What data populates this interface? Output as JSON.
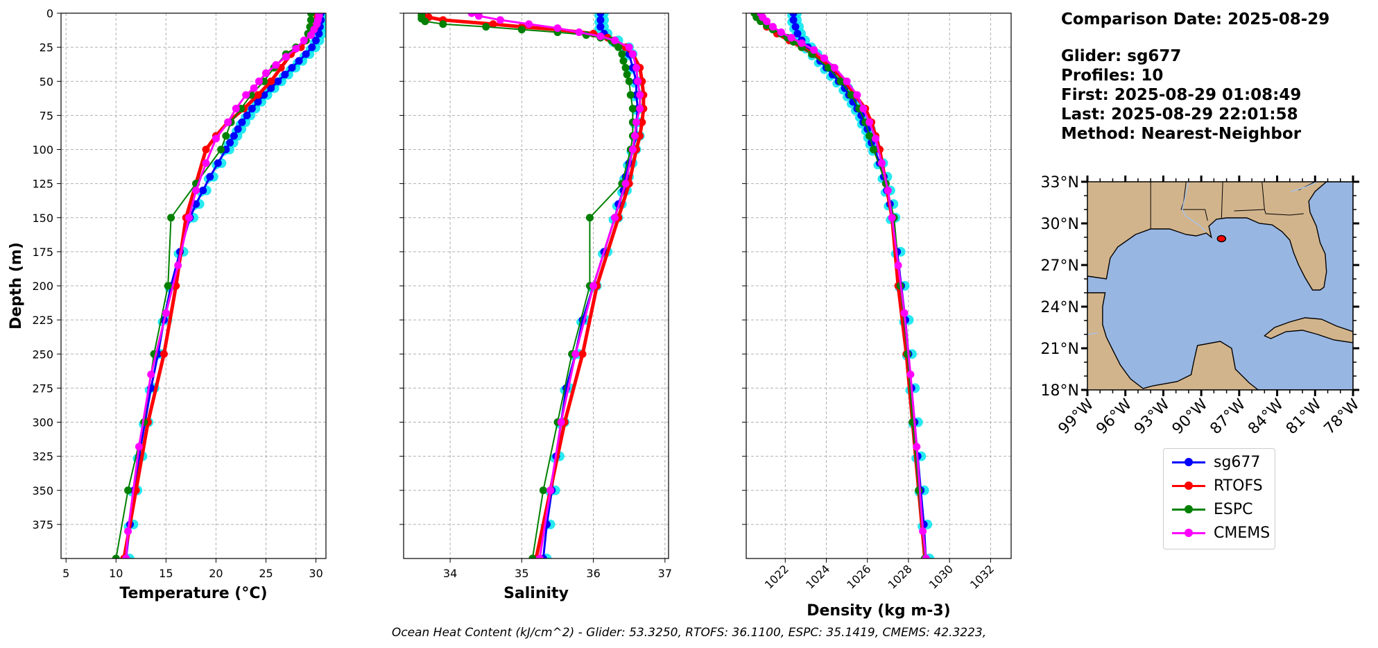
{
  "info": {
    "comparison_date": "Comparison Date: 2025-08-29",
    "glider": "Glider: sg677",
    "profiles": "Profiles: 10",
    "first": "First: 2025-08-29 01:08:49",
    "last": "Last: 2025-08-29 22:01:58",
    "method": "Method: Nearest-Neighbor"
  },
  "footer": "Ocean Heat Content (kJ/cm^2) - Glider: 53.3250,  RTOFS: 36.1100,  ESPC: 35.1419,  CMEMS: 42.3223,",
  "colors": {
    "sg677": "#0000ff",
    "sg677_spread": "#00e5ee",
    "RTOFS": "#ff0000",
    "ESPC": "#008000",
    "CMEMS": "#ff00ff",
    "land": "#d2b48c",
    "ocean": "#98b6e2"
  },
  "legend": [
    {
      "name": "sg677",
      "color": "#0000ff"
    },
    {
      "name": "RTOFS",
      "color": "#ff0000"
    },
    {
      "name": "ESPC",
      "color": "#008000"
    },
    {
      "name": "CMEMS",
      "color": "#ff00ff"
    }
  ],
  "chart_data": [
    {
      "type": "line",
      "xlabel": "Temperature (°C)",
      "ylabel": "Depth (m)",
      "xlim": [
        4.5,
        31
      ],
      "ylim": [
        400,
        0
      ],
      "xticks": [
        5,
        10,
        15,
        20,
        25,
        30
      ],
      "yticks": [
        0,
        25,
        50,
        75,
        100,
        125,
        150,
        175,
        200,
        225,
        250,
        275,
        300,
        325,
        350,
        375
      ],
      "grid": true,
      "series": [
        {
          "name": "sg677",
          "depth": [
            0,
            5,
            10,
            15,
            20,
            25,
            30,
            35,
            40,
            45,
            50,
            55,
            60,
            65,
            70,
            75,
            80,
            85,
            90,
            95,
            100,
            110,
            120,
            130,
            140,
            150,
            175,
            200,
            225,
            250,
            275,
            300,
            325,
            350,
            375,
            400
          ],
          "values": [
            30.5,
            30.5,
            30.4,
            30.3,
            30.0,
            29.6,
            29.0,
            28.3,
            27.6,
            26.9,
            26.2,
            25.5,
            24.8,
            24.2,
            23.6,
            23.1,
            22.6,
            22.2,
            21.8,
            21.4,
            21.0,
            20.2,
            19.4,
            18.7,
            18.0,
            17.4,
            16.4,
            15.5,
            14.8,
            14.2,
            13.5,
            12.9,
            12.3,
            11.8,
            11.4,
            11.0
          ]
        },
        {
          "name": "RTOFS",
          "depth": [
            0,
            5,
            10,
            15,
            20,
            25,
            30,
            40,
            50,
            60,
            70,
            80,
            90,
            100,
            125,
            150,
            200,
            250,
            300,
            350,
            400
          ],
          "values": [
            30.0,
            30.0,
            29.9,
            29.5,
            29.0,
            28.5,
            27.5,
            26.5,
            25.5,
            24.2,
            22.8,
            21.2,
            20.0,
            19.0,
            18.0,
            17.0,
            16.0,
            14.8,
            13.2,
            12.0,
            10.8
          ]
        },
        {
          "name": "ESPC",
          "depth": [
            0,
            5,
            10,
            15,
            20,
            25,
            30,
            40,
            50,
            60,
            70,
            80,
            90,
            100,
            125,
            150,
            200,
            250,
            300,
            350,
            400
          ],
          "values": [
            29.5,
            29.5,
            29.4,
            29.2,
            29.0,
            28.0,
            27.0,
            25.8,
            24.8,
            23.5,
            22.5,
            21.5,
            21.0,
            20.5,
            18.0,
            15.5,
            15.2,
            13.8,
            12.8,
            11.2,
            10.0
          ]
        },
        {
          "name": "CMEMS",
          "depth": [
            0,
            2,
            5,
            8,
            12,
            16,
            20,
            26,
            32,
            38,
            44,
            50,
            55,
            60,
            70,
            80,
            92,
            110,
            130,
            150,
            185,
            220,
            265,
            318,
            380,
            400
          ],
          "values": [
            30.3,
            30.3,
            30.2,
            30.1,
            29.8,
            29.5,
            28.8,
            28.0,
            27.0,
            26.0,
            25.0,
            24.3,
            23.8,
            23.0,
            22.0,
            21.2,
            20.0,
            19.0,
            18.0,
            17.3,
            16.2,
            15.0,
            13.5,
            12.3,
            11.2,
            11.0
          ]
        }
      ]
    },
    {
      "type": "line",
      "xlabel": "Salinity",
      "xlim": [
        33.35,
        37.05
      ],
      "ylim": [
        400,
        0
      ],
      "xticks": [
        34,
        35,
        36,
        37
      ],
      "yticks": [
        0,
        25,
        50,
        75,
        100,
        125,
        150,
        175,
        200,
        225,
        250,
        275,
        300,
        325,
        350,
        375
      ],
      "grid": true,
      "series": [
        {
          "name": "sg677",
          "depth": [
            0,
            5,
            10,
            15,
            20,
            25,
            30,
            40,
            50,
            60,
            70,
            80,
            90,
            100,
            110,
            120,
            130,
            140,
            150,
            175,
            200,
            225,
            250,
            275,
            300,
            325,
            350,
            375,
            400
          ],
          "values": [
            36.1,
            36.1,
            36.1,
            36.15,
            36.3,
            36.45,
            36.5,
            36.55,
            36.6,
            36.6,
            36.62,
            36.6,
            36.6,
            36.55,
            36.5,
            36.45,
            36.42,
            36.35,
            36.3,
            36.15,
            36.0,
            35.85,
            35.75,
            35.62,
            35.55,
            35.48,
            35.42,
            35.35,
            35.3
          ]
        },
        {
          "name": "RTOFS",
          "depth": [
            0,
            3,
            5,
            8,
            10,
            12,
            15,
            18,
            20,
            25,
            30,
            40,
            50,
            60,
            70,
            80,
            90,
            100,
            125,
            150,
            200,
            250,
            300,
            350,
            400
          ],
          "values": [
            33.6,
            33.7,
            33.9,
            34.6,
            35.0,
            35.5,
            36.0,
            36.2,
            36.3,
            36.45,
            36.55,
            36.65,
            36.68,
            36.7,
            36.7,
            36.68,
            36.65,
            36.6,
            36.5,
            36.35,
            36.05,
            35.85,
            35.6,
            35.4,
            35.2
          ]
        },
        {
          "name": "ESPC",
          "depth": [
            0,
            2,
            4,
            6,
            8,
            10,
            12,
            14,
            16,
            18,
            20,
            22,
            25,
            30,
            35,
            40,
            45,
            50,
            60,
            70,
            80,
            90,
            100,
            125,
            150,
            200,
            250,
            300,
            350,
            400
          ],
          "values": [
            33.6,
            33.6,
            33.6,
            33.65,
            33.9,
            34.5,
            35.0,
            35.5,
            35.9,
            36.1,
            36.25,
            36.3,
            36.35,
            36.4,
            36.42,
            36.45,
            36.47,
            36.5,
            36.52,
            36.55,
            36.55,
            36.55,
            36.52,
            36.4,
            35.95,
            35.95,
            35.7,
            35.5,
            35.3,
            35.15
          ]
        },
        {
          "name": "CMEMS",
          "depth": [
            0,
            2,
            5,
            8,
            11,
            14,
            17,
            20,
            25,
            30,
            40,
            50,
            60,
            70,
            80,
            90,
            100,
            125,
            150,
            200,
            250,
            300,
            350,
            400
          ],
          "values": [
            34.3,
            34.4,
            34.7,
            35.1,
            35.5,
            35.8,
            36.1,
            36.3,
            36.5,
            36.55,
            36.6,
            36.62,
            36.65,
            36.65,
            36.6,
            36.58,
            36.55,
            36.45,
            36.3,
            36.0,
            35.75,
            35.55,
            35.4,
            35.25
          ]
        }
      ]
    },
    {
      "type": "line",
      "xlabel": "Density (kg m-3)",
      "xlim": [
        1020.1,
        1033
      ],
      "ylim": [
        400,
        0
      ],
      "xticks": [
        1022,
        1024,
        1026,
        1028,
        1030,
        1032
      ],
      "yticks": [
        0,
        25,
        50,
        75,
        100,
        125,
        150,
        175,
        200,
        225,
        250,
        275,
        300,
        325,
        350,
        375
      ],
      "grid": true,
      "series": [
        {
          "name": "sg677",
          "depth": [
            0,
            5,
            10,
            15,
            20,
            25,
            30,
            35,
            40,
            45,
            50,
            55,
            60,
            65,
            70,
            75,
            80,
            85,
            90,
            95,
            100,
            110,
            120,
            130,
            140,
            150,
            175,
            200,
            225,
            250,
            275,
            300,
            325,
            350,
            375,
            400
          ],
          "values": [
            1022.4,
            1022.4,
            1022.5,
            1022.6,
            1022.8,
            1023.1,
            1023.4,
            1023.7,
            1024.0,
            1024.3,
            1024.6,
            1024.9,
            1025.1,
            1025.3,
            1025.5,
            1025.7,
            1025.8,
            1026.0,
            1026.1,
            1026.2,
            1026.35,
            1026.6,
            1026.8,
            1026.95,
            1027.1,
            1027.2,
            1027.45,
            1027.65,
            1027.85,
            1028.0,
            1028.15,
            1028.3,
            1028.45,
            1028.6,
            1028.75,
            1028.85
          ]
        },
        {
          "name": "RTOFS",
          "depth": [
            0,
            5,
            10,
            15,
            20,
            25,
            30,
            40,
            50,
            60,
            70,
            80,
            90,
            100,
            125,
            150,
            200,
            250,
            300,
            350,
            400
          ],
          "values": [
            1020.6,
            1020.8,
            1021.1,
            1021.6,
            1022.2,
            1022.8,
            1023.4,
            1024.3,
            1024.9,
            1025.4,
            1025.9,
            1026.2,
            1026.4,
            1026.6,
            1026.9,
            1027.2,
            1027.5,
            1027.9,
            1028.2,
            1028.5,
            1028.8
          ]
        },
        {
          "name": "ESPC",
          "depth": [
            0,
            3,
            6,
            9,
            12,
            15,
            18,
            21,
            25,
            30,
            40,
            50,
            60,
            70,
            80,
            90,
            100,
            125,
            150,
            200,
            250,
            300,
            350,
            400
          ],
          "values": [
            1020.5,
            1020.6,
            1020.8,
            1021.1,
            1021.4,
            1021.8,
            1022.1,
            1022.4,
            1022.8,
            1023.3,
            1024.1,
            1024.7,
            1025.2,
            1025.6,
            1025.9,
            1026.1,
            1026.3,
            1026.9,
            1027.3,
            1027.6,
            1027.95,
            1028.2,
            1028.5,
            1028.8
          ]
        },
        {
          "name": "CMEMS",
          "depth": [
            0,
            3,
            6,
            10,
            14,
            18,
            22,
            27,
            33,
            40,
            50,
            60,
            70,
            80,
            92,
            110,
            130,
            150,
            185,
            220,
            265,
            318,
            380,
            400
          ],
          "values": [
            1020.8,
            1020.9,
            1021.1,
            1021.4,
            1021.8,
            1022.3,
            1022.8,
            1023.4,
            1023.9,
            1024.4,
            1025.0,
            1025.5,
            1025.8,
            1026.1,
            1026.4,
            1026.7,
            1027.0,
            1027.2,
            1027.5,
            1027.8,
            1028.1,
            1028.4,
            1028.7,
            1028.85
          ]
        }
      ]
    },
    {
      "type": "map",
      "lat_ticks": [
        "33°N",
        "30°N",
        "27°N",
        "24°N",
        "21°N",
        "18°N"
      ],
      "lon_ticks": [
        "99°W",
        "96°W",
        "93°W",
        "90°W",
        "87°W",
        "84°W",
        "81°W",
        "78°W"
      ],
      "lon_range": [
        -99,
        -78
      ],
      "lat_range": [
        18,
        33
      ],
      "glider_position": {
        "lon": -88.4,
        "lat": 28.9
      }
    }
  ]
}
